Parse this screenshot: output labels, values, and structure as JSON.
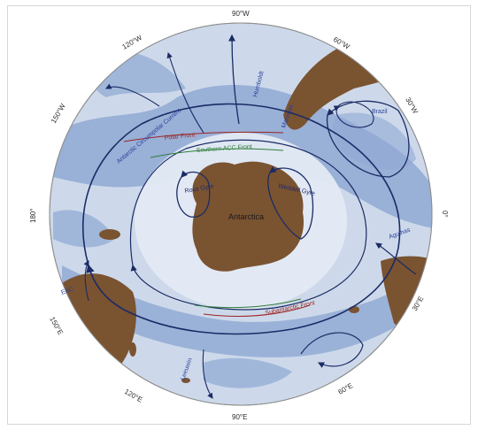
{
  "longitude_labels": {
    "top": "90°W",
    "top_right": "60°W",
    "right_upper": "30°W",
    "right": "0°",
    "bottom_right": "30°E",
    "bottom_right2": "60°E",
    "bottom": "90°E",
    "bottom_left": "120°E",
    "left_lower": "150°E",
    "left": "180°",
    "left_upper": "150°W",
    "top_left": "120°W"
  },
  "regions": {
    "antarctica": "Antarctica"
  },
  "gyres": {
    "ross": "Ross Gyre",
    "weddell": "Weddell Gyre"
  },
  "currents": {
    "acc": "Antarctic Circumpolar Current",
    "polar_front": "Polar Front",
    "saf": "Subantarctic Front",
    "saccf": "Southern ACC Front",
    "agulhas": "Agulhas",
    "malvinas": "Malvinas",
    "brazil": "Brazil",
    "peru": "Humboldt",
    "east_aus": "EAC",
    "leeuwin": "Leeuwin"
  },
  "colors": {
    "ocean_light": "#c9d7ea",
    "ocean_mid": "#8fa8d3",
    "land": "#7a5331",
    "ice": "#e6edf5",
    "current_line": "#1b2b66"
  }
}
